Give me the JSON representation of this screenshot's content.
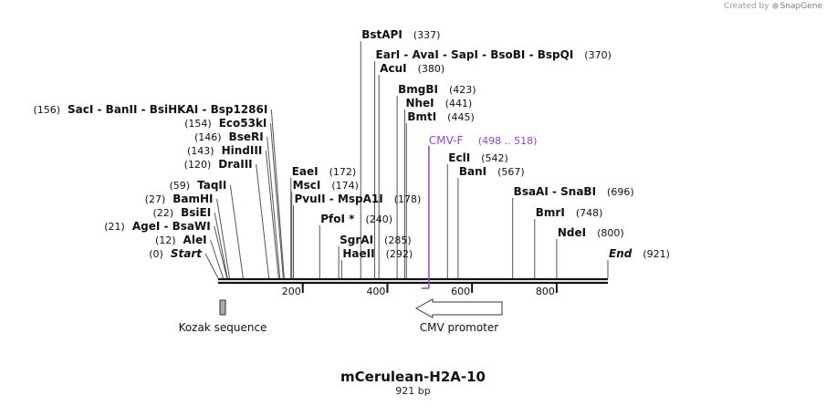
{
  "credit": {
    "prefix": "Created by",
    "brand": "SnapGene"
  },
  "map": {
    "title": "mCerulean-H2A-10",
    "length_label": "921 bp",
    "length": 921
  },
  "axis": {
    "ticks": [
      {
        "pos": 200,
        "label": "200"
      },
      {
        "pos": 400,
        "label": "400"
      },
      {
        "pos": 600,
        "label": "600"
      },
      {
        "pos": 800,
        "label": "800"
      }
    ]
  },
  "sites": [
    {
      "id": "end",
      "pos": 921,
      "name": "End",
      "num": "(921)",
      "italic": true,
      "side": "right",
      "row": 282
    },
    {
      "id": "ndei",
      "pos": 800,
      "name": "NdeI",
      "num": "(800)",
      "side": "right",
      "row": 259
    },
    {
      "id": "bmri",
      "pos": 748,
      "name": "BmrI",
      "num": "(748)",
      "side": "right",
      "row": 237
    },
    {
      "id": "bsaai",
      "pos": 696,
      "name": "BsaAI  -  SnaBI",
      "num": "(696)",
      "side": "right",
      "row": 214
    },
    {
      "id": "bani",
      "pos": 567,
      "name": "BanI",
      "num": "(567)",
      "side": "right",
      "row": 192
    },
    {
      "id": "ecli",
      "pos": 542,
      "name": "EclI",
      "num": "(542)",
      "side": "right",
      "row": 177
    },
    {
      "id": "bmti",
      "pos": 445,
      "name": "BmtI",
      "num": "(445)",
      "side": "right",
      "row": 132
    },
    {
      "id": "nhei",
      "pos": 441,
      "name": "NheI",
      "num": "(441)",
      "side": "right",
      "row": 117
    },
    {
      "id": "bmgbi",
      "pos": 423,
      "name": "BmgBI",
      "num": "(423)",
      "side": "right",
      "row": 102
    },
    {
      "id": "acui",
      "pos": 380,
      "name": "AcuI",
      "num": "(380)",
      "side": "right",
      "row": 79
    },
    {
      "id": "eari",
      "pos": 370,
      "name": "EarI  -  AvaI  -  SapI  -  BsoBI  -  BspQI",
      "num": "(370)",
      "side": "right",
      "row": 64
    },
    {
      "id": "bstapi",
      "pos": 337,
      "name": "BstAPI",
      "num": "(337)",
      "side": "right",
      "row": 42
    },
    {
      "id": "haeii",
      "pos": 292,
      "name": "HaeII",
      "num": "(292)",
      "side": "right",
      "row": 282
    },
    {
      "id": "sgrai",
      "pos": 285,
      "name": "SgrAI",
      "num": "(285)",
      "side": "right",
      "row": 267
    },
    {
      "id": "pfoi",
      "pos": 240,
      "name": "PfoI *",
      "num": "(240)",
      "side": "right",
      "row": 244
    },
    {
      "id": "pvuii",
      "pos": 178,
      "name": "PvuII  -  MspA1I",
      "num": "(178)",
      "side": "right",
      "row": 222
    },
    {
      "id": "msci",
      "pos": 174,
      "name": "MscI",
      "num": "(174)",
      "side": "right",
      "row": 207
    },
    {
      "id": "eaei",
      "pos": 172,
      "name": "EaeI",
      "num": "(172)",
      "side": "right",
      "row": 192
    },
    {
      "id": "saci",
      "pos": 156,
      "name": "SacI  -  BanII  -  BsiHKAI  -  Bsp1286I",
      "num": "(156)",
      "side": "left",
      "row": 124
    },
    {
      "id": "eco53ki",
      "pos": 154,
      "name": "Eco53kI",
      "num": "(154)",
      "side": "left",
      "row": 139
    },
    {
      "id": "bseri",
      "pos": 146,
      "name": "BseRI",
      "num": "(146)",
      "side": "left",
      "row": 154
    },
    {
      "id": "hindiii",
      "pos": 143,
      "name": "HindIII",
      "num": "(143)",
      "side": "left",
      "row": 169
    },
    {
      "id": "draiii",
      "pos": 120,
      "name": "DraIII",
      "num": "(120)",
      "side": "left",
      "row": 184
    },
    {
      "id": "taqii",
      "pos": 59,
      "name": "TaqII",
      "num": "(59)",
      "side": "left",
      "row": 207
    },
    {
      "id": "bamhi",
      "pos": 27,
      "name": "BamHI",
      "num": "(27)",
      "side": "left",
      "row": 222
    },
    {
      "id": "bsiei",
      "pos": 22,
      "name": "BsiEI",
      "num": "(22)",
      "side": "left",
      "row": 237
    },
    {
      "id": "agei",
      "pos": 21,
      "name": "AgeI  -  BsaWI",
      "num": "(21)",
      "side": "left",
      "row": 252
    },
    {
      "id": "alei",
      "pos": 12,
      "name": "AleI",
      "num": "(12)",
      "side": "left",
      "row": 267
    },
    {
      "id": "start",
      "pos": 0,
      "name": "Start",
      "num": "(0)",
      "italic": true,
      "side": "left",
      "row": 282
    }
  ],
  "primer": {
    "name": "CMV-F",
    "range": "(498 .. 518)",
    "start": 498,
    "end": 518,
    "color": "#9a3fd6"
  },
  "features": [
    {
      "id": "kozak",
      "label": "Kozak sequence",
      "start": 0,
      "end": 9,
      "shape": "box"
    },
    {
      "id": "cmv",
      "label": "CMV promoter",
      "start": 470,
      "end": 672,
      "shape": "arrow-left"
    }
  ]
}
